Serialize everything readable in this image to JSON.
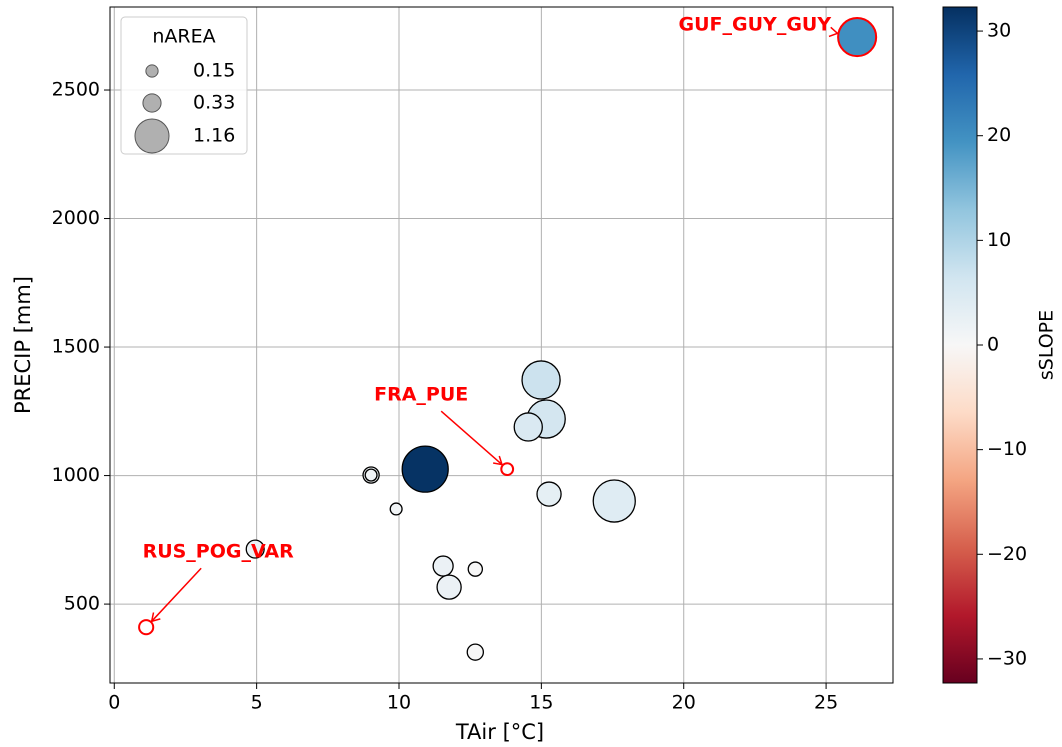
{
  "chart_data": {
    "type": "scatter",
    "xlabel": "TAir [°C]",
    "ylabel": "PRECIP [mm]",
    "x": [
      26.09,
      14.99,
      15.17,
      14.54,
      10.92,
      9.02,
      9.02,
      13.8,
      15.27,
      17.56,
      9.9,
      4.95,
      11.55,
      12.68,
      11.76,
      12.68,
      1.12
    ],
    "y": [
      2706,
      1372,
      1220,
      1189,
      1025,
      1002,
      1002,
      1025,
      928,
      901,
      870,
      714,
      648,
      636,
      566,
      313,
      410
    ],
    "size": [
      1.45,
      1.45,
      1.45,
      0.79,
      2.12,
      0.26,
      0.14,
      0.14,
      0.58,
      1.77,
      0.14,
      0.32,
      0.4,
      0.2,
      0.58,
      0.26,
      0.2
    ],
    "color_values": [
      20,
      7,
      6,
      5,
      32,
      1,
      1,
      null,
      3,
      4,
      1,
      2,
      2,
      0,
      2,
      0,
      null
    ],
    "labels": [
      "GUF_GUY_GUY",
      null,
      null,
      null,
      null,
      null,
      null,
      "FRA_PUE",
      null,
      null,
      null,
      null,
      null,
      null,
      null,
      null,
      "RUS_POG_VAR"
    ],
    "label_color": "#ff0000",
    "xlim": [
      -0.15,
      27.35
    ],
    "ylim": [
      193,
      2823
    ],
    "xticks": [
      0,
      5,
      10,
      15,
      20,
      25
    ],
    "yticks": [
      500,
      1000,
      1500,
      2000,
      2500
    ],
    "grid": true,
    "size_legend": {
      "title": "nAREA",
      "values": [
        0.15,
        0.33,
        1.16
      ],
      "color": "#b0b0b0",
      "loc": "upper left"
    },
    "colorbar": {
      "label": "sSLOPE",
      "colormap": "RdBu",
      "lim": [
        -32.3,
        32.3
      ],
      "ticks": [
        {
          "value": -30,
          "label": "−30"
        },
        {
          "value": -20,
          "label": "−20"
        },
        {
          "value": -10,
          "label": "−10"
        },
        0,
        10,
        20,
        30
      ]
    }
  }
}
